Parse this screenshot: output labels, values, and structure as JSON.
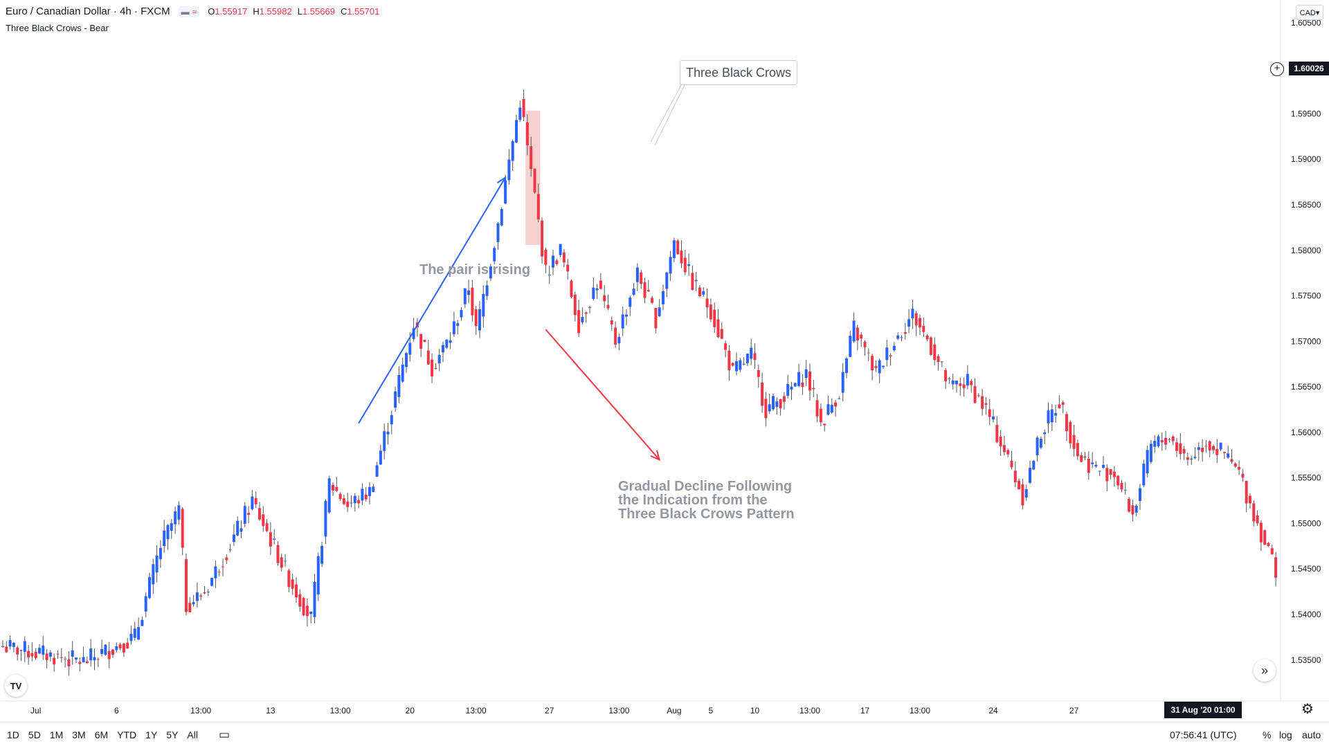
{
  "header": {
    "symbol": "Euro / Canadian Dollar · 4h · FXCM",
    "toggle_1": "▬",
    "toggle_2": "≈",
    "ohlc": {
      "o_label": "O",
      "o": "1.55917",
      "h_label": "H",
      "h": "1.55982",
      "l_label": "L",
      "l": "1.55669",
      "c_label": "C",
      "c": "1.55701"
    },
    "indicator": "Three Black Crows - Bear"
  },
  "currency_button": "CAD▾",
  "current_price_tag": "1.60026",
  "crosshair_date_tag": "31 Aug '20   01:00",
  "annotations": {
    "callout": "Three Black Crows",
    "rising": "The pair is rising",
    "decline_lines": [
      "Gradual Decline Following",
      "the Indication from the",
      "Three Black Crows Pattern"
    ]
  },
  "bottom_bar": {
    "periods": [
      "1D",
      "5D",
      "1M",
      "3M",
      "6M",
      "YTD",
      "1Y",
      "5Y",
      "All"
    ],
    "clock": "07:56:41 (UTC)",
    "percent": "%",
    "log": "log",
    "auto": "auto"
  },
  "icons": {
    "compare": "calendar-range-icon",
    "settings": "gear-icon",
    "scroll": "double-chevron-right-icon",
    "logo": "tradingview-logo-icon"
  },
  "colors": {
    "bull": "#2962ff",
    "bear": "#f23645",
    "rise_arrow": "#2962ff",
    "decline_arrow": "#f23645",
    "highlight": "#f8c9c9"
  },
  "chart_data": {
    "type": "candlestick",
    "title": "Euro / Canadian Dollar · 4h · FXCM",
    "ylim": [
      1.5305,
      1.6075
    ],
    "y_ticks": [
      "1.60500",
      "1.60000",
      "1.59500",
      "1.59000",
      "1.58500",
      "1.58000",
      "1.57500",
      "1.57000",
      "1.56500",
      "1.56000",
      "1.55500",
      "1.55000",
      "1.54500",
      "1.54000",
      "1.53500"
    ],
    "x_ticks": [
      "Jul",
      "6",
      "13:00",
      "13",
      "13:00",
      "20",
      "13:00",
      "27",
      "13:00",
      "Aug",
      "5",
      "10",
      "13:00",
      "17",
      "13:00",
      "24",
      "27"
    ],
    "close_anchors": [
      [
        0,
        1.5365
      ],
      [
        22,
        1.5348
      ],
      [
        36,
        1.5375
      ],
      [
        43,
        1.5475
      ],
      [
        48,
        1.5515
      ],
      [
        50,
        1.541
      ],
      [
        55,
        1.5425
      ],
      [
        63,
        1.5485
      ],
      [
        68,
        1.5525
      ],
      [
        78,
        1.544
      ],
      [
        84,
        1.5395
      ],
      [
        89,
        1.5545
      ],
      [
        94,
        1.552
      ],
      [
        100,
        1.5535
      ],
      [
        106,
        1.5625
      ],
      [
        112,
        1.572
      ],
      [
        117,
        1.5672
      ],
      [
        122,
        1.5705
      ],
      [
        127,
        1.576
      ],
      [
        129,
        1.571
      ],
      [
        135,
        1.583
      ],
      [
        141,
        1.5965
      ],
      [
        143,
        1.5915
      ],
      [
        148,
        1.5775
      ],
      [
        152,
        1.58
      ],
      [
        157,
        1.572
      ],
      [
        162,
        1.5765
      ],
      [
        167,
        1.57
      ],
      [
        173,
        1.5775
      ],
      [
        178,
        1.5725
      ],
      [
        183,
        1.581
      ],
      [
        188,
        1.5765
      ],
      [
        193,
        1.5735
      ],
      [
        199,
        1.5665
      ],
      [
        204,
        1.5685
      ],
      [
        208,
        1.5625
      ],
      [
        213,
        1.564
      ],
      [
        219,
        1.5665
      ],
      [
        223,
        1.561
      ],
      [
        228,
        1.5645
      ],
      [
        232,
        1.5715
      ],
      [
        238,
        1.5665
      ],
      [
        243,
        1.57
      ],
      [
        248,
        1.573
      ],
      [
        253,
        1.5695
      ],
      [
        258,
        1.565
      ],
      [
        263,
        1.5655
      ],
      [
        268,
        1.5625
      ],
      [
        273,
        1.558
      ],
      [
        278,
        1.553
      ],
      [
        283,
        1.56
      ],
      [
        288,
        1.5635
      ],
      [
        293,
        1.5575
      ],
      [
        298,
        1.556
      ],
      [
        303,
        1.5555
      ],
      [
        308,
        1.551
      ],
      [
        313,
        1.5585
      ],
      [
        318,
        1.5595
      ],
      [
        323,
        1.557
      ],
      [
        328,
        1.559
      ],
      [
        333,
        1.5575
      ],
      [
        337,
        1.5555
      ],
      [
        341,
        1.551
      ],
      [
        345,
        1.547
      ],
      [
        347,
        1.545
      ]
    ],
    "bearish_highlight": {
      "start_index": 143,
      "end_index": 145,
      "label": "Three Black Crows"
    },
    "overlay_arrows": [
      {
        "label": "The pair is rising",
        "from": [
          97,
          1.561
        ],
        "to": [
          137,
          1.588
        ],
        "color": "#2962ff"
      },
      {
        "label": "Gradual Decline Following the Indication from the Three Black Crows Pattern",
        "from": [
          148,
          1.5713
        ],
        "to": [
          179,
          1.557
        ],
        "color": "#f23645"
      }
    ],
    "last_price_label": "1.60026",
    "grid": false,
    "legend": "none"
  }
}
